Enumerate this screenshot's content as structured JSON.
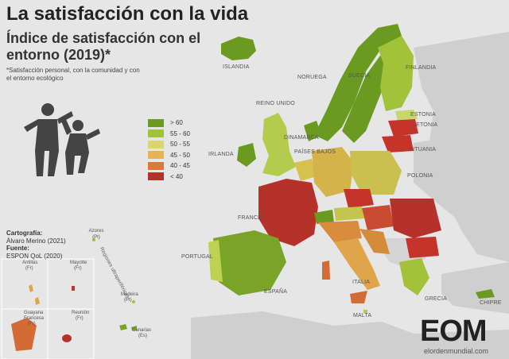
{
  "title": "La satisfacción con la vida",
  "subtitle": "Índice de satisfacción con el entorno (2019)*",
  "note": "*Satisfacción personal, con la comunidad y con el entorno ecológico",
  "legend": [
    {
      "label": "> 60",
      "color": "#6a9a1f"
    },
    {
      "label": "55 - 60",
      "color": "#a2c23a"
    },
    {
      "label": "50 - 55",
      "color": "#d9d76a"
    },
    {
      "label": "45 - 50",
      "color": "#e8b357"
    },
    {
      "label": "40 - 45",
      "color": "#d97a3a"
    },
    {
      "label": "< 40",
      "color": "#b5322a"
    }
  ],
  "credits": {
    "cartography_label": "Cartografía:",
    "cartography": "Álvaro Merino (2021)",
    "source_label": "Fuente:",
    "source": "ESPON QoL (2020)"
  },
  "labels": {
    "islandia": "ISLANDIA",
    "noruega": "NORUEGA",
    "suecia": "SUECIA",
    "finlandia": "FINLANDIA",
    "reino_unido": "REINO UNIDO",
    "dinamarca": "DINAMARCA",
    "estonia": "ESTONIA",
    "letonia": "LETONIA",
    "lituania": "LITUANIA",
    "irlanda": "IRLANDA",
    "paises_bajos": "PAÍSES BAJOS",
    "polonia": "POLONIA",
    "francia": "FRANCIA",
    "portugal": "PORTUGAL",
    "espana": "ESPAÑA",
    "italia": "ITALIA",
    "grecia": "GRECIA",
    "chipre": "CHIPRE",
    "malta": "MALTA",
    "azores": "Azores",
    "azores_country": "(Pt)",
    "madeira": "Madeira",
    "madeira_country": "(Pt)",
    "canarias": "Canarias",
    "canarias_country": "(Es)",
    "antillas": "Antillas",
    "antillas_country": "(Fr)",
    "mayotte": "Mayotte",
    "mayotte_country": "(Fr)",
    "guayana": "Guayana",
    "guayana_2": "Francesa",
    "guayana_country": "(Fr)",
    "reunion": "Reunión",
    "reunion_country": "(Fr)",
    "ultraperifericas": "Regiones ultraperiféricas"
  },
  "brand": {
    "logo": "EOM",
    "website": "elordenmundial.com"
  }
}
